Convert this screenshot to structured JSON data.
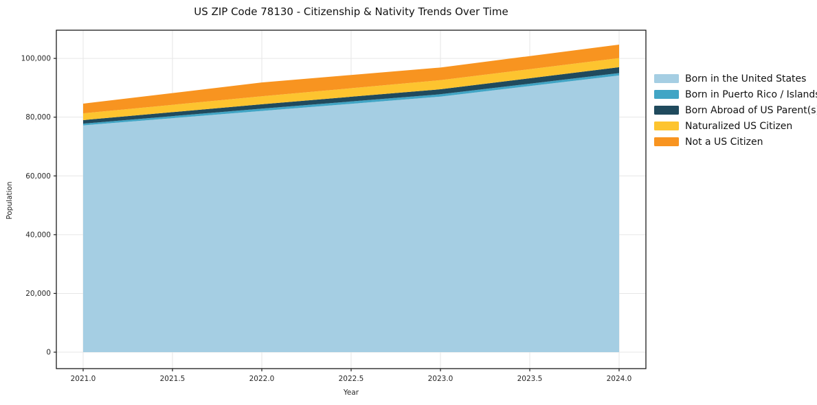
{
  "chart_data": {
    "type": "area",
    "stacked": true,
    "title": "US ZIP Code 78130 - Citizenship & Nativity Trends Over Time",
    "xlabel": "Year",
    "ylabel": "Population",
    "x": [
      2021,
      2022,
      2023,
      2024
    ],
    "series": [
      {
        "name": "Born in the United States",
        "color": "#a5cee3",
        "values": [
          77200,
          82100,
          87000,
          94200
        ]
      },
      {
        "name": "Born in Puerto Rico / Islands",
        "color": "#41a5c5",
        "values": [
          600,
          800,
          800,
          800
        ]
      },
      {
        "name": "Born Abroad of US Parent(s)",
        "color": "#204a5d",
        "values": [
          1200,
          1500,
          1700,
          2000
        ]
      },
      {
        "name": "Naturalized US Citizen",
        "color": "#fdc42f",
        "values": [
          2300,
          2700,
          3100,
          3100
        ]
      },
      {
        "name": "Not a US Citizen",
        "color": "#f89420",
        "values": [
          3300,
          4700,
          4300,
          4600
        ]
      }
    ],
    "totals": [
      84600,
      91800,
      96900,
      104700
    ],
    "xlim": [
      2020.85,
      2024.15
    ],
    "ylim": [
      -5600,
      109600
    ],
    "xticks": [
      {
        "v": 2021.0,
        "label": "2021.0"
      },
      {
        "v": 2021.5,
        "label": "2021.5"
      },
      {
        "v": 2022.0,
        "label": "2022.0"
      },
      {
        "v": 2022.5,
        "label": "2022.5"
      },
      {
        "v": 2023.0,
        "label": "2023.0"
      },
      {
        "v": 2023.5,
        "label": "2023.5"
      },
      {
        "v": 2024.0,
        "label": "2024.0"
      }
    ],
    "yticks": [
      {
        "v": 0,
        "label": "0"
      },
      {
        "v": 20000,
        "label": "20,000"
      },
      {
        "v": 40000,
        "label": "40,000"
      },
      {
        "v": 60000,
        "label": "60,000"
      },
      {
        "v": 80000,
        "label": "80,000"
      },
      {
        "v": 100000,
        "label": "100,000"
      }
    ],
    "grid": true,
    "legend_position": "right-outside"
  },
  "colors": {
    "background": "#ffffff",
    "grid": "#e6e6e6",
    "spine": "#1a1a1a",
    "tick_text": "#262626",
    "title_text": "#111111"
  }
}
